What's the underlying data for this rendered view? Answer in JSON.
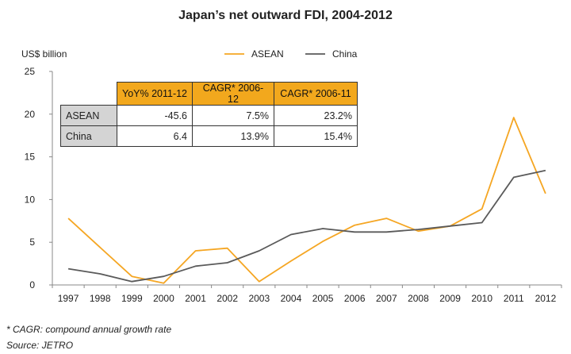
{
  "chart_data": {
    "type": "line",
    "title": "Japan’s net outward FDI, 2004-2012",
    "ylabel": "US$ billion",
    "xlabel": "",
    "x": [
      "1997",
      "1998",
      "1999",
      "2000",
      "2001",
      "2002",
      "2003",
      "2004",
      "2005",
      "2006",
      "2007",
      "2008",
      "2009",
      "2010",
      "2011",
      "2012"
    ],
    "yticks": [
      0,
      5,
      10,
      15,
      20,
      25
    ],
    "ylim": [
      0,
      25
    ],
    "grid": false,
    "legend_position": "top",
    "series": [
      {
        "name": "ASEAN",
        "color": "#f5a623",
        "values": [
          7.8,
          4.4,
          1.0,
          0.2,
          4.0,
          4.3,
          0.4,
          2.8,
          5.1,
          7.0,
          7.8,
          6.3,
          6.9,
          8.9,
          19.6,
          10.7
        ]
      },
      {
        "name": "China",
        "color": "#5a5a5a",
        "values": [
          1.9,
          1.3,
          0.4,
          1.0,
          2.2,
          2.6,
          4.0,
          5.9,
          6.6,
          6.2,
          6.2,
          6.5,
          6.9,
          7.3,
          12.6,
          13.4
        ]
      }
    ],
    "table": {
      "headers": [
        "YoY% 2011-12",
        "CAGR* 2006-12",
        "CAGR* 2006-11"
      ],
      "rows": [
        {
          "label": "ASEAN",
          "values": [
            "-45.6",
            "7.5%",
            "23.2%"
          ]
        },
        {
          "label": "China",
          "values": [
            "6.4",
            "13.9%",
            "15.4%"
          ]
        }
      ]
    }
  },
  "notes": {
    "footnote": "* CAGR: compound annual growth rate",
    "source": "Source: JETRO"
  }
}
